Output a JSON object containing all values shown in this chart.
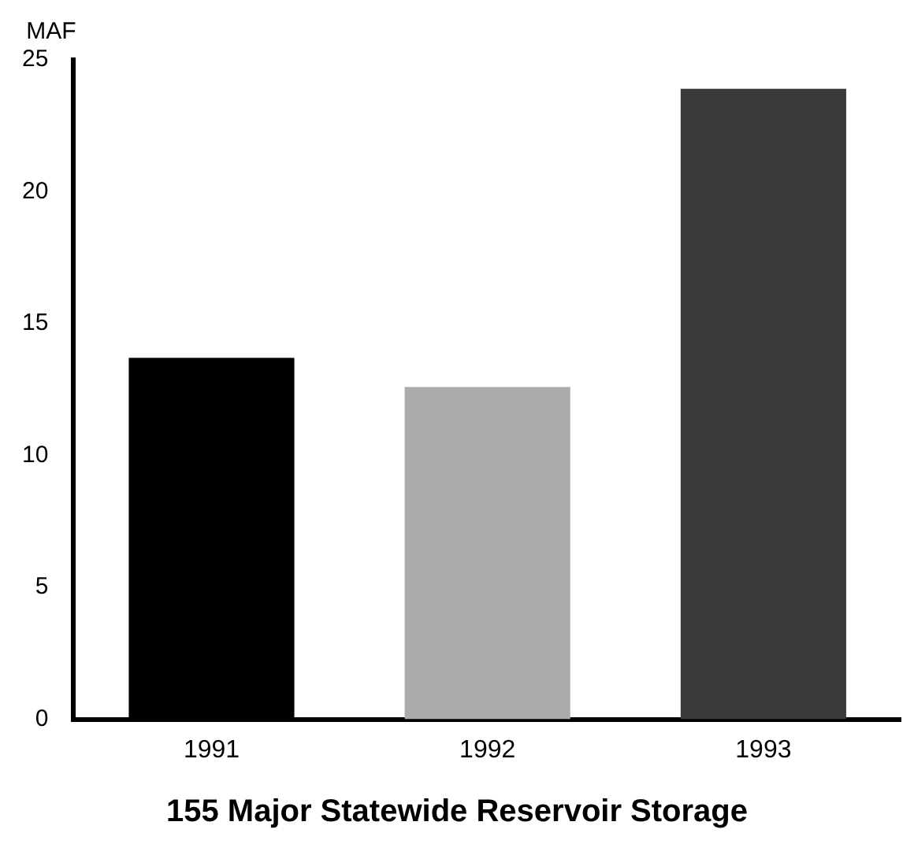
{
  "chart_data": {
    "type": "bar",
    "title": "155 Major Statewide Reservoir Storage",
    "ylabel": "MAF",
    "categories": [
      "1991",
      "1992",
      "1993"
    ],
    "values": [
      13.7,
      12.6,
      23.9
    ],
    "colors": [
      "#000000",
      "#ababab",
      "#3a3a3a"
    ],
    "ylim": [
      0,
      25
    ],
    "yticks": [
      0,
      5,
      10,
      15,
      20,
      25
    ],
    "grid": false,
    "legend": false
  }
}
